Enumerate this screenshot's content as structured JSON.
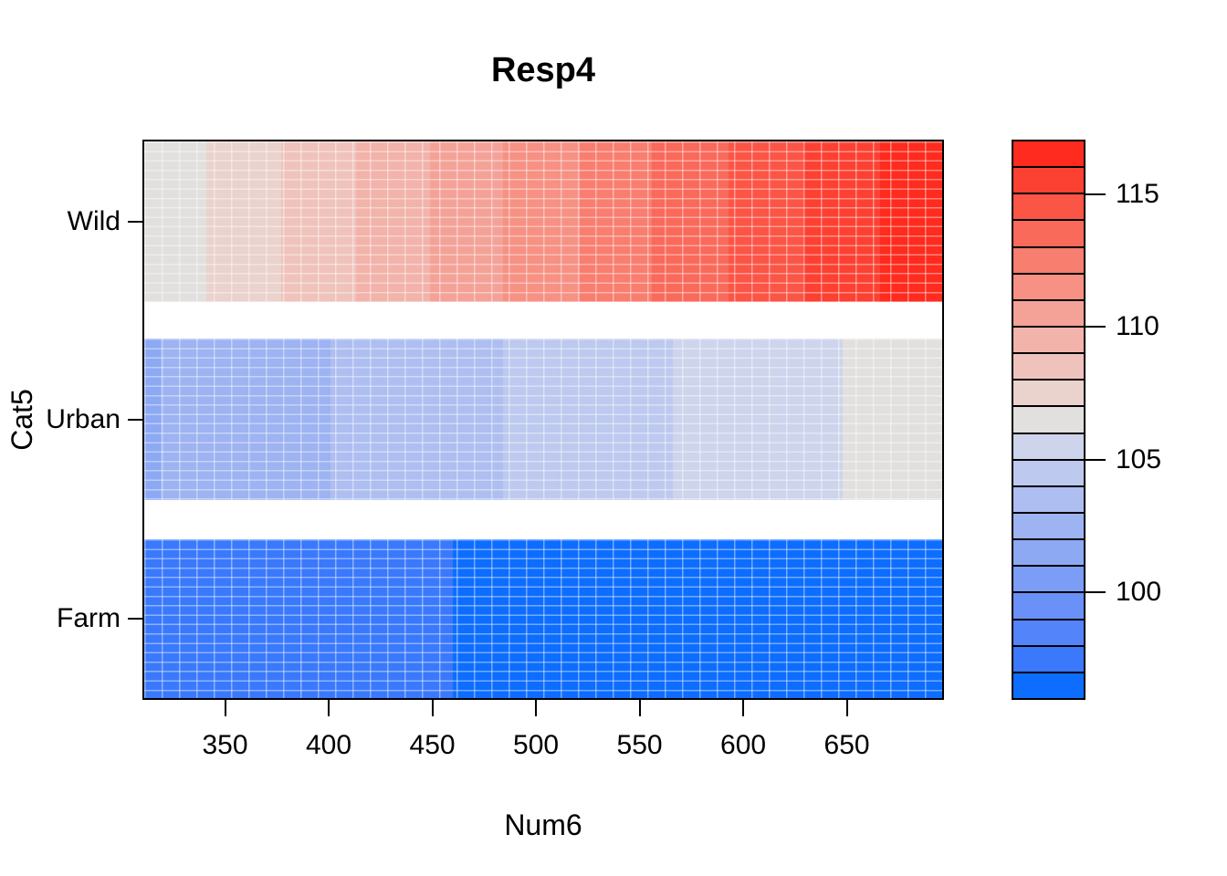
{
  "chart_data": {
    "type": "heatmap",
    "title": "Resp4",
    "xlabel": "Num6",
    "ylabel": "Cat5",
    "x_range": [
      311,
      696
    ],
    "x_ticks": [
      350,
      400,
      450,
      500,
      550,
      600,
      650
    ],
    "y_categories_bottom_to_top": [
      "Farm",
      "Urban",
      "Wild"
    ],
    "grid": "fine white cell borders over each band",
    "legend_position": "right",
    "color_scale": {
      "range": [
        96,
        117
      ],
      "n_levels": 21,
      "level_size": 1,
      "ticks": [
        100,
        105,
        110,
        115
      ],
      "low_color": "#0d6dfe",
      "mid_color": "#e1e0de",
      "high_color": "#fe2b1e",
      "palette_low_to_high": [
        "#0d6dfe",
        "#3a79fc",
        "#5484fa",
        "#6a91f8",
        "#7c9df6",
        "#8da9f4",
        "#9db3f2",
        "#aebef0",
        "#bdc9ee",
        "#cdd4ec",
        "#e1e0de",
        "#ead2cd",
        "#efc3bc",
        "#f2b3aa",
        "#f4a298",
        "#f69184",
        "#f87e70",
        "#f96a5b",
        "#fb5546",
        "#fc4133",
        "#fe2b1e"
      ]
    },
    "bands": [
      {
        "category": "Wild",
        "x_boundaries": [
          311,
          341,
          377,
          413,
          449,
          484,
          521,
          556,
          593,
          629,
          666,
          696
        ],
        "levels": [
          11,
          12,
          13,
          14,
          15,
          16,
          17,
          18,
          19,
          20,
          21
        ],
        "value_start": 106.2,
        "value_end": 116.8,
        "trend": "increases with Num6 from gray (~106) to bright red (~117)"
      },
      {
        "category": "Urban",
        "x_boundaries": [
          311,
          319,
          401,
          484,
          566,
          648,
          696
        ],
        "levels": [
          6,
          7,
          8,
          9,
          10,
          11
        ],
        "value_start": 101.9,
        "value_end": 106.6,
        "trend": "increases with Num6 from light blue (~102) to gray (~106.5)"
      },
      {
        "category": "Farm",
        "x_boundaries": [
          311,
          460,
          696
        ],
        "levels": [
          2,
          1
        ],
        "value_start": 97.5,
        "value_end": 96.4,
        "trend": "slight decrease with Num6, strong blue throughout (~97.5 to ~96.5)"
      }
    ]
  }
}
